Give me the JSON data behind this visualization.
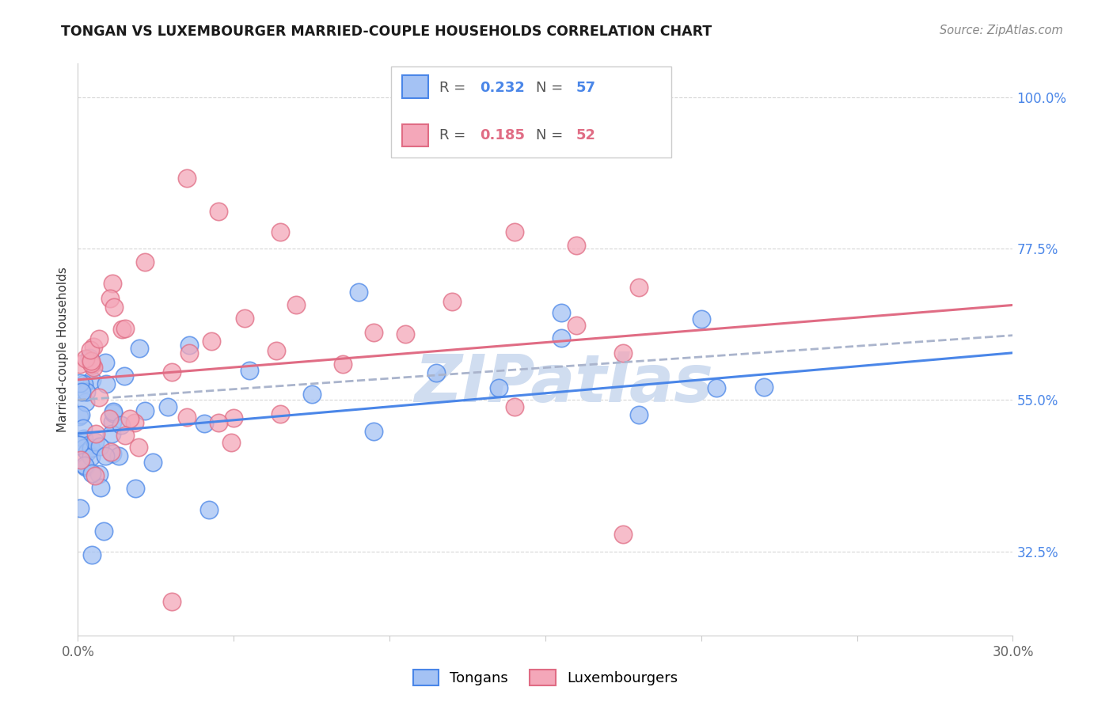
{
  "title": "TONGAN VS LUXEMBOURGER MARRIED-COUPLE HOUSEHOLDS CORRELATION CHART",
  "source": "Source: ZipAtlas.com",
  "ylabel": "Married-couple Households",
  "y_ticks_right": [
    32.5,
    55.0,
    77.5,
    100.0
  ],
  "y_ticks_right_labels": [
    "32.5%",
    "55.0%",
    "77.5%",
    "100.0%"
  ],
  "xlim": [
    0.0,
    30.0
  ],
  "ylim": [
    20.0,
    105.0
  ],
  "legend_R1": "0.232",
  "legend_N1": "57",
  "legend_R2": "0.185",
  "legend_N2": "52",
  "legend_label1": "Tongans",
  "legend_label2": "Luxembourgers",
  "blue_fill": "#a4c2f4",
  "pink_fill": "#f4a7b9",
  "blue_edge": "#4a86e8",
  "pink_edge": "#e06c84",
  "blue_line": "#4a86e8",
  "pink_line": "#e06c84",
  "dashed_line_color": "#aab4cc",
  "watermark_color": "#d0ddf0",
  "background_color": "#ffffff",
  "grid_color": "#cccccc",
  "right_tick_color": "#4a86e8",
  "title_color": "#1a1a1a",
  "source_color": "#888888"
}
